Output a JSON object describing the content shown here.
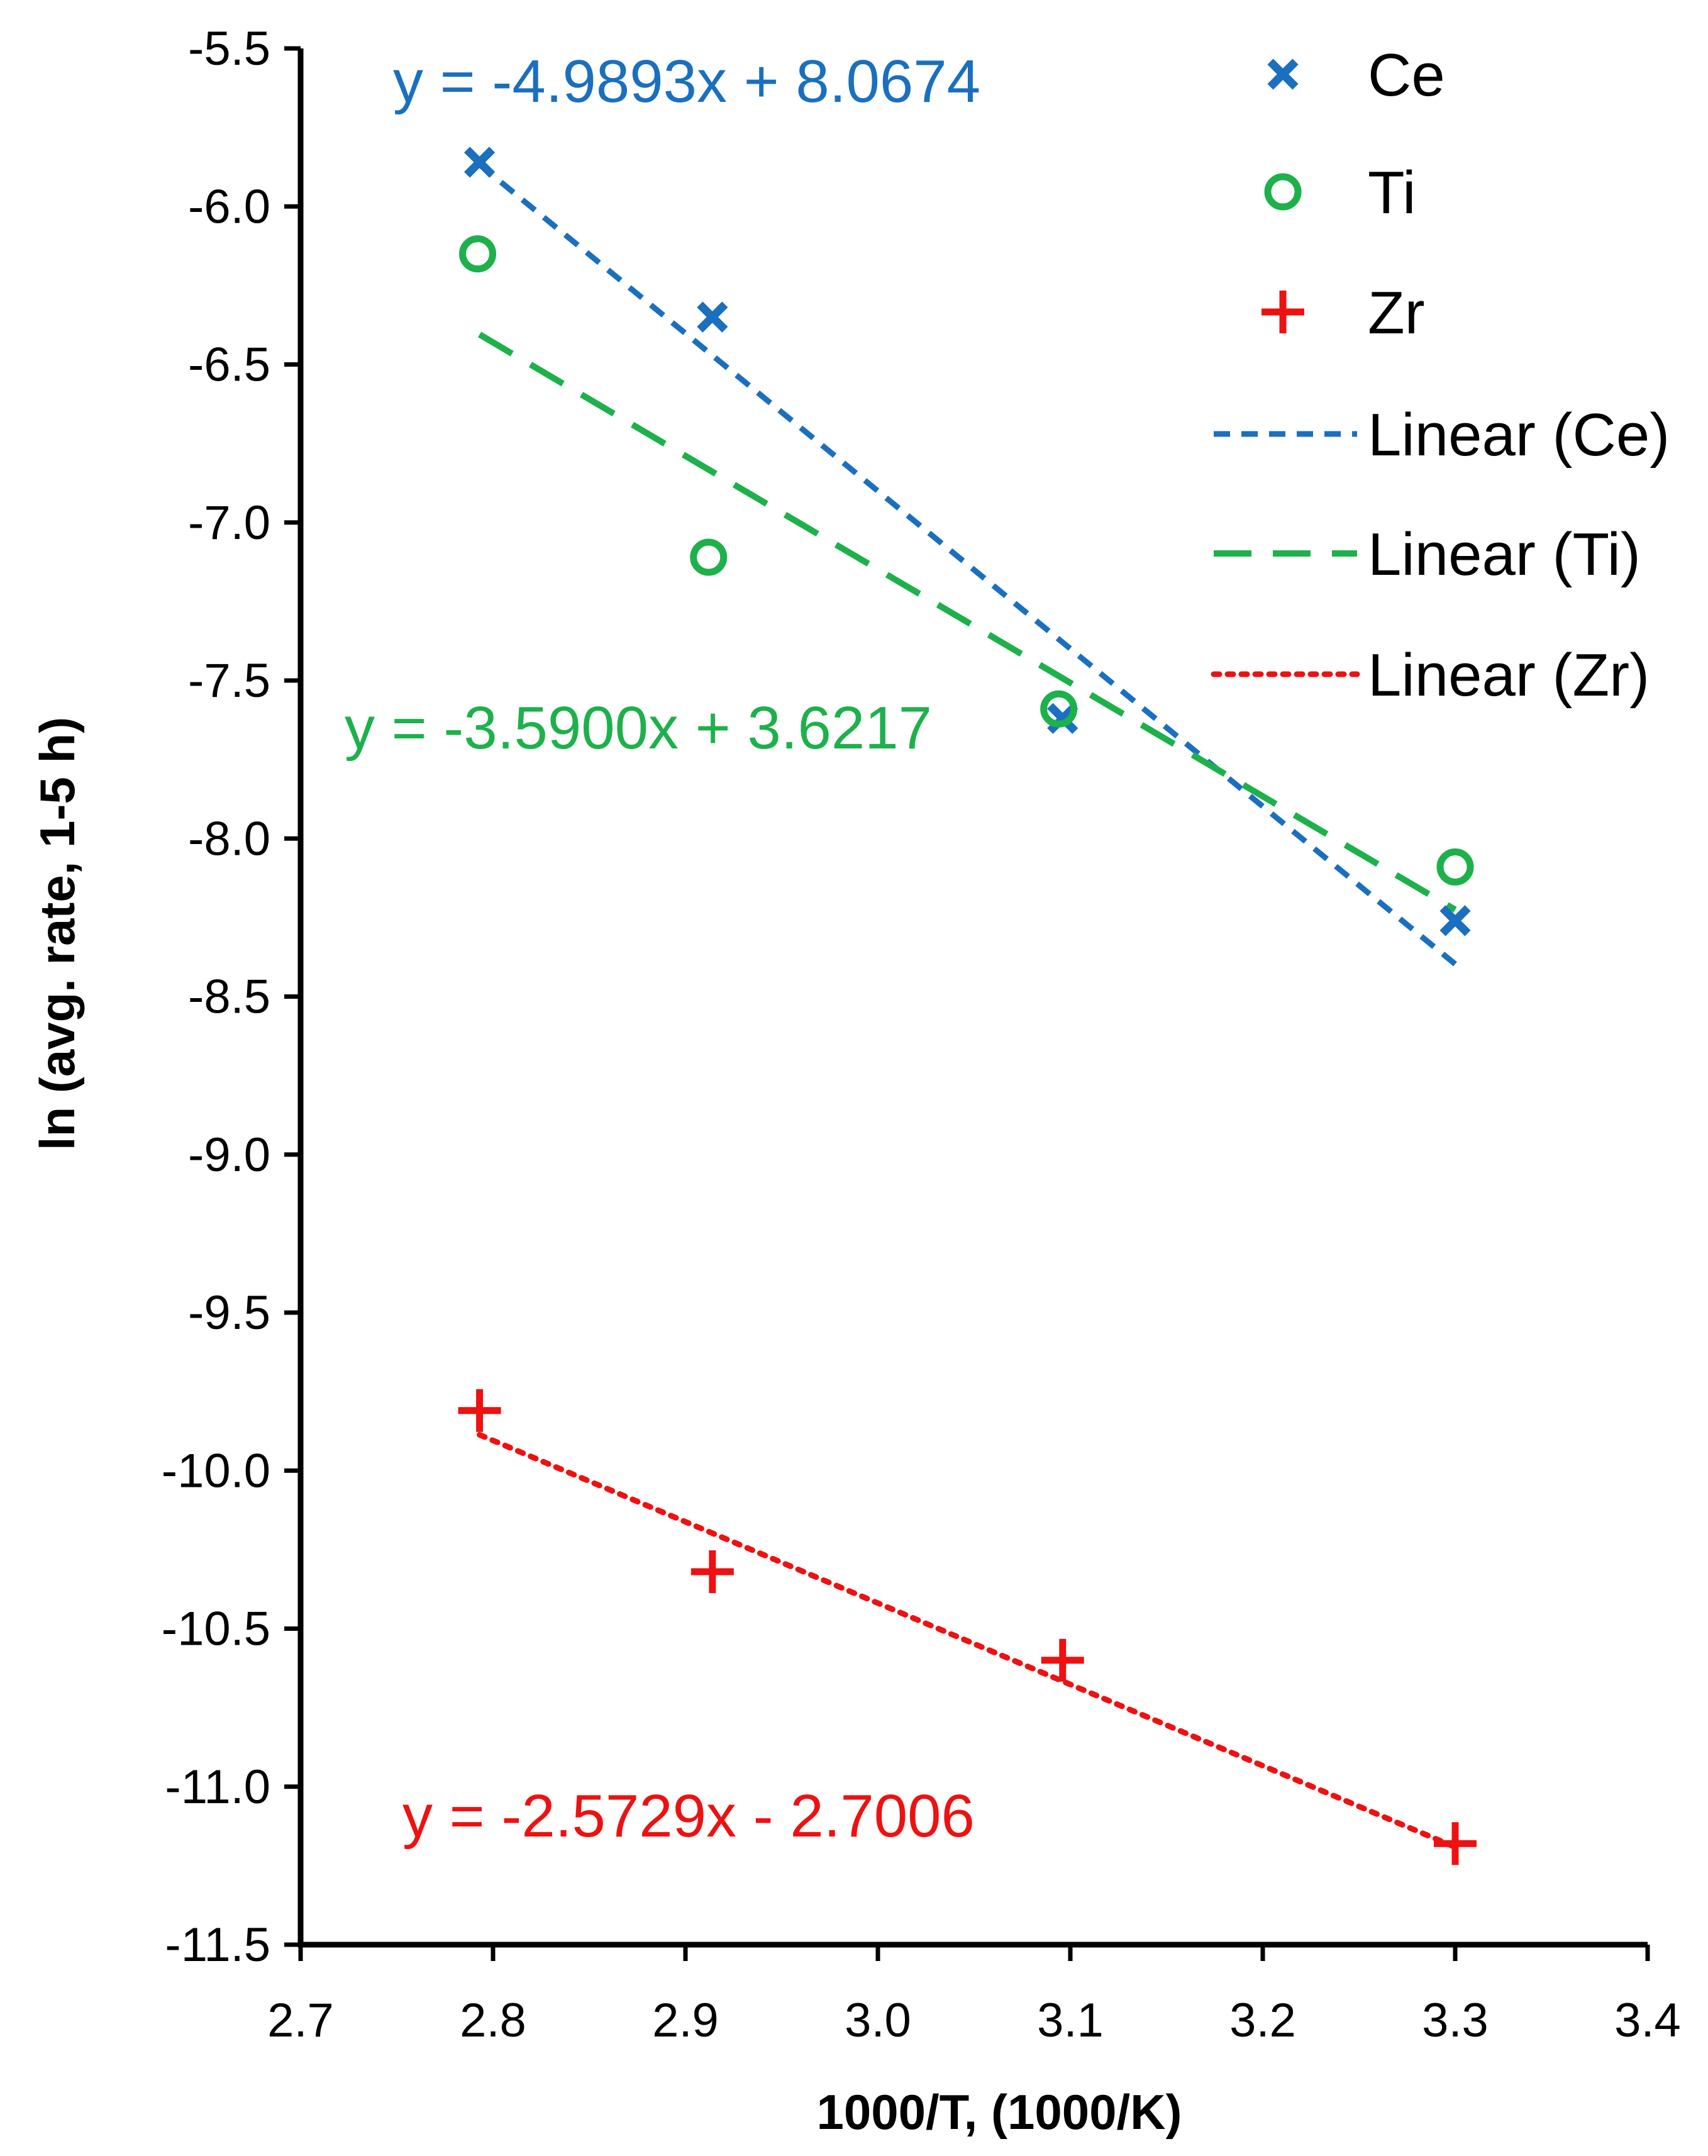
{
  "colors": {
    "ce": "#1a6fbf",
    "ti": "#1db14b",
    "zr": "#ee1111",
    "axis": "#000000",
    "background": "#ffffff"
  },
  "chart_data": {
    "type": "scatter",
    "title": "",
    "xlabel": "1000/T, (1000/K)",
    "ylabel": "ln (avg. rate, 1-5 h)",
    "xlim": [
      2.7,
      3.4
    ],
    "ylim": [
      -11.5,
      -5.5
    ],
    "x_ticks": [
      2.7,
      2.8,
      2.9,
      3.0,
      3.1,
      3.2,
      3.3,
      3.4
    ],
    "x_tick_labels": [
      "2.7",
      "2.8",
      "2.9",
      "3.0",
      "3.1",
      "3.2",
      "3.3",
      "3.4"
    ],
    "y_ticks": [
      -5.5,
      -6.0,
      -6.5,
      -7.0,
      -7.5,
      -8.0,
      -8.5,
      -9.0,
      -9.5,
      -10.0,
      -10.5,
      -11.0,
      -11.5
    ],
    "y_tick_labels": [
      "-5.5",
      "-6.0",
      "-6.5",
      "-7.0",
      "-7.5",
      "-8.0",
      "-8.5",
      "-9.0",
      "-9.5",
      "-10.0",
      "-10.5",
      "-11.0",
      "-11.5"
    ],
    "grid": false,
    "legend_position": "top-right",
    "series": [
      {
        "name": "Ce",
        "key": "ce",
        "marker": "x",
        "points": [
          {
            "x": 2.793,
            "y": -5.86
          },
          {
            "x": 2.914,
            "y": -6.35
          },
          {
            "x": 3.096,
            "y": -7.62
          },
          {
            "x": 3.3,
            "y": -8.26
          }
        ]
      },
      {
        "name": "Ti",
        "key": "ti",
        "marker": "circle",
        "points": [
          {
            "x": 2.792,
            "y": -6.15
          },
          {
            "x": 2.912,
            "y": -7.11
          },
          {
            "x": 3.094,
            "y": -7.59
          },
          {
            "x": 3.3,
            "y": -8.09
          }
        ]
      },
      {
        "name": "Zr",
        "key": "zr",
        "marker": "plus",
        "points": [
          {
            "x": 2.793,
            "y": -9.81
          },
          {
            "x": 2.914,
            "y": -10.32
          },
          {
            "x": 3.096,
            "y": -10.6
          },
          {
            "x": 3.3,
            "y": -11.18
          }
        ]
      }
    ],
    "trendlines": [
      {
        "name": "Linear (Ce)",
        "key": "ce",
        "style": "short-dash",
        "slope": -4.9893,
        "intercept": 8.0674,
        "x_range": [
          2.793,
          3.3
        ]
      },
      {
        "name": "Linear (Ti)",
        "key": "ti",
        "style": "long-dash",
        "slope": -3.59,
        "intercept": 3.6217,
        "x_range": [
          2.793,
          3.3
        ]
      },
      {
        "name": "Linear (Zr)",
        "key": "zr",
        "style": "dot",
        "slope": -2.5729,
        "intercept": -2.7006,
        "x_range": [
          2.793,
          3.3
        ]
      }
    ],
    "annotations": [
      {
        "key": "ce",
        "text": "y = -4.9893x + 8.0674"
      },
      {
        "key": "ti",
        "text": "y = -3.5900x + 3.6217"
      },
      {
        "key": "zr",
        "text": "y = -2.5729x - 2.7006"
      }
    ],
    "legend": [
      {
        "label": "Ce",
        "key": "ce",
        "kind": "marker",
        "marker": "x"
      },
      {
        "label": "Ti",
        "key": "ti",
        "kind": "marker",
        "marker": "circle"
      },
      {
        "label": "Zr",
        "key": "zr",
        "kind": "marker",
        "marker": "plus"
      },
      {
        "label": "Linear (Ce)",
        "key": "ce",
        "kind": "line",
        "style": "short-dash"
      },
      {
        "label": "Linear (Ti)",
        "key": "ti",
        "kind": "line",
        "style": "long-dash"
      },
      {
        "label": "Linear (Zr)",
        "key": "zr",
        "kind": "line",
        "style": "dot"
      }
    ]
  }
}
